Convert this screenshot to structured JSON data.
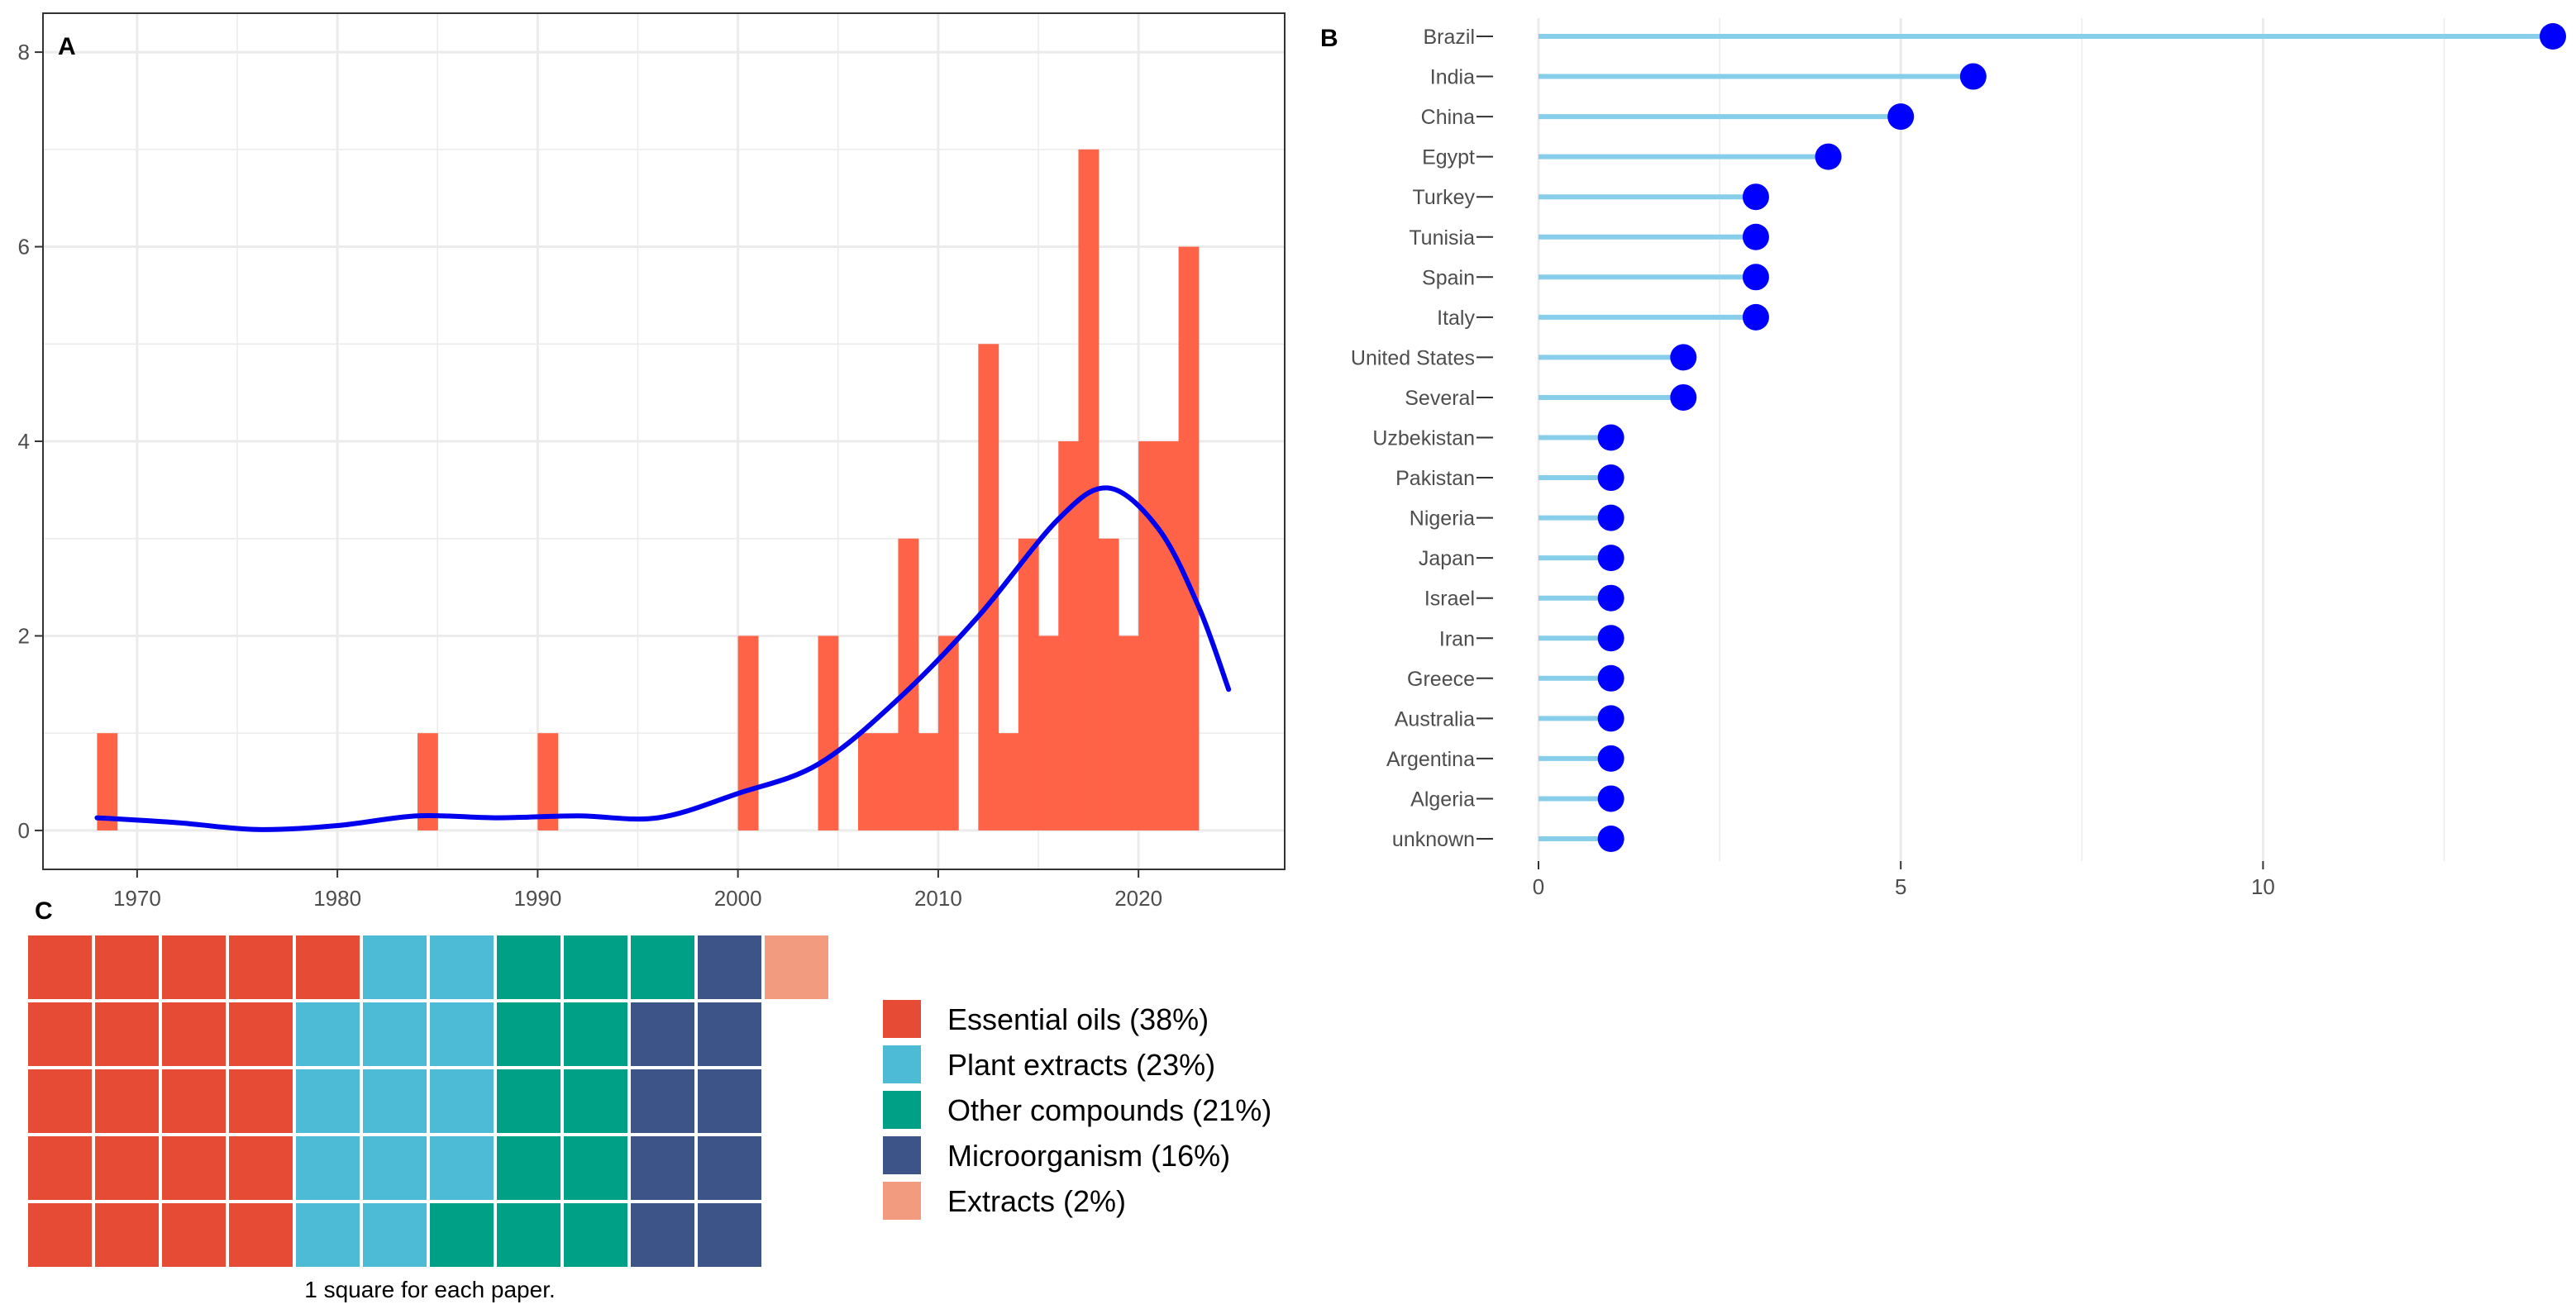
{
  "colors": {
    "bar": "#FF6347",
    "smooth": "#0000EE",
    "stem": "#87CEEB",
    "dot": "#0000FF",
    "grid": "#EBEBEB",
    "axis_text": "#4D4D4D"
  },
  "chart_data": [
    {
      "panel_label": "A",
      "type": "bar",
      "title": "",
      "xlabel": "",
      "ylabel": "",
      "xlim": [
        1965.3,
        2027.3
      ],
      "ylim": [
        -0.4,
        8.4
      ],
      "x_ticks": [
        1970,
        1980,
        1990,
        2000,
        2010,
        2020
      ],
      "y_ticks": [
        0,
        2,
        4,
        6,
        8
      ],
      "bin_width": 1.0,
      "bars": [
        {
          "year": 1968.5,
          "count": 1
        },
        {
          "year": 1984.5,
          "count": 1
        },
        {
          "year": 1990.5,
          "count": 1
        },
        {
          "year": 2000.5,
          "count": 2
        },
        {
          "year": 2004.5,
          "count": 2
        },
        {
          "year": 2006.5,
          "count": 1
        },
        {
          "year": 2007.5,
          "count": 1
        },
        {
          "year": 2008.5,
          "count": 3
        },
        {
          "year": 2009.5,
          "count": 1
        },
        {
          "year": 2010.5,
          "count": 2
        },
        {
          "year": 2012.5,
          "count": 5
        },
        {
          "year": 2013.5,
          "count": 1
        },
        {
          "year": 2014.5,
          "count": 3
        },
        {
          "year": 2015.5,
          "count": 2
        },
        {
          "year": 2016.5,
          "count": 4
        },
        {
          "year": 2017.5,
          "count": 7
        },
        {
          "year": 2018.5,
          "count": 3
        },
        {
          "year": 2019.5,
          "count": 2
        },
        {
          "year": 2020.5,
          "count": 4
        },
        {
          "year": 2021.5,
          "count": 4
        },
        {
          "year": 2022.5,
          "count": 6
        }
      ],
      "smooth_line": {
        "x": [
          1968,
          1972,
          1976,
          1980,
          1984,
          1988,
          1992,
          1996,
          2000,
          2004,
          2008,
          2012,
          2016,
          2018.5,
          2021,
          2023,
          2024.5
        ],
        "y": [
          0.13,
          0.08,
          0.01,
          0.05,
          0.15,
          0.13,
          0.15,
          0.13,
          0.38,
          0.68,
          1.35,
          2.2,
          3.2,
          3.52,
          3.1,
          2.3,
          1.45
        ]
      }
    },
    {
      "panel_label": "B",
      "type": "lollipop",
      "title": "",
      "xlabel": "",
      "ylabel": "",
      "xlim": [
        0,
        14
      ],
      "x_ticks": [
        0,
        5,
        10
      ],
      "categories": [
        "Brazil",
        "India",
        "China",
        "Egypt",
        "Turkey",
        "Tunisia",
        "Spain",
        "Italy",
        "United States",
        "Several",
        "Uzbekistan",
        "Pakistan",
        "Nigeria",
        "Japan",
        "Israel",
        "Iran",
        "Greece",
        "Australia",
        "Argentina",
        "Algeria",
        "unknown"
      ],
      "values": [
        14,
        6,
        5,
        4,
        3,
        3,
        3,
        3,
        2,
        2,
        1,
        1,
        1,
        1,
        1,
        1,
        1,
        1,
        1,
        1,
        1
      ]
    },
    {
      "panel_label": "C",
      "type": "waffle",
      "caption": "1 square for each paper.",
      "rows": 5,
      "legend": [
        {
          "label": "Essential oils (38%)",
          "count": 21,
          "color": "#E64B35"
        },
        {
          "label": "Plant extracts (23%)",
          "count": 13,
          "color": "#4DBBD5"
        },
        {
          "label": "Other compounds (21%)",
          "count": 12,
          "color": "#00A087"
        },
        {
          "label": "Microorganism (16%)",
          "count": 9,
          "color": "#3C5488"
        },
        {
          "label": "Extracts (2%)",
          "count": 1,
          "color": "#F39B7F"
        }
      ]
    }
  ]
}
